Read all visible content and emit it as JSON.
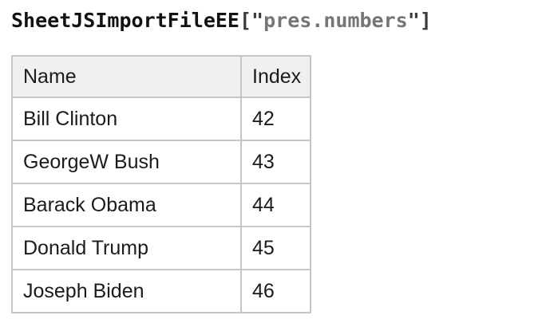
{
  "title": {
    "identifier": "SheetJSImportFileEE",
    "punct_open": "[\"",
    "string_value": "pres.numbers",
    "punct_close": "\"]"
  },
  "colors": {
    "identifier_text": "#121212",
    "punctuation_text": "#3a3a3a",
    "string_text": "#757575",
    "table_border": "#c6c6c6",
    "header_background": "#f0f0f0",
    "body_text": "#1b1b1b",
    "page_background": "#ffffff"
  },
  "table": {
    "columns": [
      {
        "label": "Name"
      },
      {
        "label": "Index"
      }
    ],
    "rows": [
      {
        "name": "Bill Clinton",
        "index": "42"
      },
      {
        "name": "GeorgeW Bush",
        "index": "43"
      },
      {
        "name": "Barack Obama",
        "index": "44"
      },
      {
        "name": "Donald Trump",
        "index": "45"
      },
      {
        "name": "Joseph Biden",
        "index": "46"
      }
    ]
  }
}
